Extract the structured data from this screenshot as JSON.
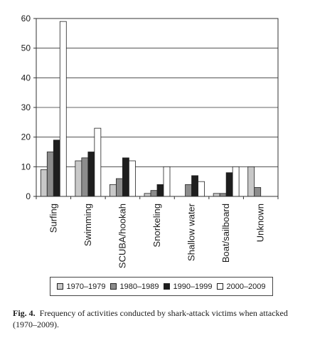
{
  "chart_data": {
    "type": "bar",
    "categories": [
      "Surfing",
      "Swimming",
      "SCUBA/hookah",
      "Snorkeling",
      "Shallow water",
      "Boat/sailboard",
      "Unknown"
    ],
    "series": [
      {
        "name": "1970–1979",
        "color": "#c8c8c8",
        "values": [
          9,
          12,
          4,
          1,
          0,
          1,
          10
        ]
      },
      {
        "name": "1980–1989",
        "color": "#8c8c8c",
        "values": [
          15,
          13,
          6,
          2,
          4,
          1,
          3
        ]
      },
      {
        "name": "1990–1999",
        "color": "#1e1e1e",
        "values": [
          19,
          15,
          13,
          4,
          7,
          8,
          0
        ]
      },
      {
        "name": "2000–2009",
        "color": "#ffffff",
        "values": [
          59,
          23,
          12,
          10,
          5,
          10,
          0
        ]
      }
    ],
    "ylim": [
      0,
      60
    ],
    "yticks": [
      0,
      10,
      20,
      30,
      40,
      50,
      60
    ],
    "grid": true,
    "legend_position": "bottom"
  },
  "caption": {
    "lead": "Fig. 4.",
    "text": "Frequency of activities conducted by shark-attack victims when attacked (1970–2009)."
  }
}
